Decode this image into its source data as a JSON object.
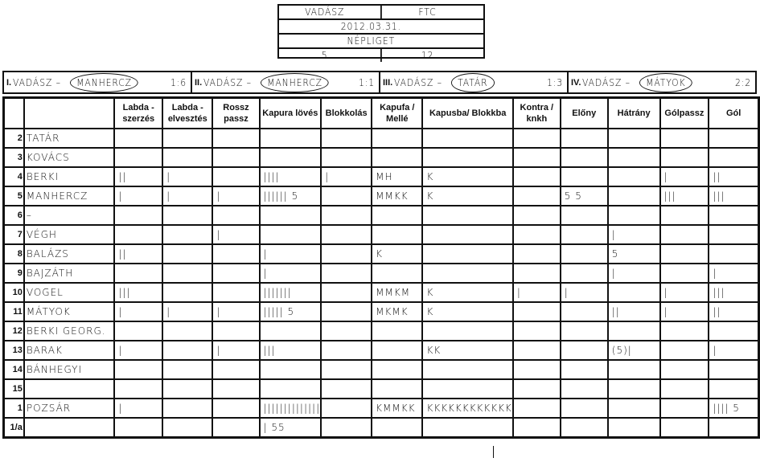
{
  "match": {
    "home": "VADÁSZ",
    "away": "FTC",
    "date": "2012.03.31.",
    "venue": "NÉPLIGET",
    "home_score": "5",
    "away_score": "12"
  },
  "periods": [
    {
      "label": "I.",
      "text": "VADÁSZ –",
      "goalie": "MANHERCZ",
      "score": "1:6"
    },
    {
      "label": "II.",
      "text": "VADÁSZ –",
      "goalie": "MANHERCZ",
      "score": "1:1"
    },
    {
      "label": "III.",
      "text": "VADÁSZ –",
      "goalie": "TATÁR",
      "score": "1:3"
    },
    {
      "label": "IV.",
      "text": "VADÁSZ –",
      "goalie": "MÁTYOK",
      "score": "2:2"
    }
  ],
  "columns": [
    "Labda - szerzés",
    "Labda - elvesztés",
    "Rossz passz",
    "Kapura lövés",
    "Blokkolás",
    "Kapufa / Mellé",
    "Kapusba/ Blokkba",
    "Kontra / knkh",
    "Előny",
    "Hátrány",
    "Gólpassz",
    "Gól"
  ],
  "rows": [
    {
      "num": "2",
      "name": "TATÁR",
      "cells": [
        "",
        "",
        "",
        "",
        "",
        "",
        "",
        "",
        "",
        "",
        "",
        ""
      ]
    },
    {
      "num": "3",
      "name": "KOVÁCS",
      "cells": [
        "",
        "",
        "",
        "",
        "",
        "",
        "",
        "",
        "",
        "",
        "",
        ""
      ]
    },
    {
      "num": "4",
      "name": "BERKI",
      "cells": [
        "||",
        "|",
        "",
        "||||",
        "|",
        "MH",
        "K",
        "",
        "",
        "",
        "|",
        "||"
      ]
    },
    {
      "num": "5",
      "name": "MANHERCZ",
      "cells": [
        "|",
        "|",
        "|",
        "||||||   5",
        "",
        "MMKK",
        "K",
        "",
        "5 5",
        "",
        "|||",
        "|||"
      ]
    },
    {
      "num": "6",
      "name": "–",
      "cells": [
        "",
        "",
        "",
        "",
        "",
        "",
        "",
        "",
        "",
        "",
        "",
        ""
      ]
    },
    {
      "num": "7",
      "name": "VÉGH",
      "cells": [
        "",
        "",
        "|",
        "",
        "",
        "",
        "",
        "",
        "",
        "|",
        "",
        ""
      ]
    },
    {
      "num": "8",
      "name": "BALÁZS",
      "cells": [
        "||",
        "",
        "",
        "|",
        "",
        "K",
        "",
        "",
        "",
        "5",
        "",
        ""
      ]
    },
    {
      "num": "9",
      "name": "BAJZÁTH",
      "cells": [
        "",
        "",
        "",
        "|",
        "",
        "",
        "",
        "",
        "",
        "|",
        "",
        "|"
      ]
    },
    {
      "num": "10",
      "name": "VOGEL",
      "cells": [
        "|||",
        "",
        "",
        "|||||||",
        "",
        "MMKM",
        "K",
        "|",
        "|",
        "",
        "|",
        "|||"
      ]
    },
    {
      "num": "11",
      "name": "MÁTYOK",
      "cells": [
        "|",
        "|",
        "|",
        "|||||   5",
        "",
        "MKMK",
        "K",
        "",
        "",
        "||",
        "|",
        "||"
      ]
    },
    {
      "num": "12",
      "name": "BERKI GEORG.",
      "cells": [
        "",
        "",
        "",
        "",
        "",
        "",
        "",
        "",
        "",
        "",
        "",
        ""
      ]
    },
    {
      "num": "13",
      "name": "BARAK",
      "cells": [
        "|",
        "",
        "|",
        "|||",
        "",
        "",
        "KK",
        "",
        "",
        "(5)|",
        "",
        "|"
      ]
    },
    {
      "num": "14",
      "name": "BÁNHEGYI",
      "cells": [
        "",
        "",
        "",
        "",
        "",
        "",
        "",
        "",
        "",
        "",
        "",
        ""
      ]
    },
    {
      "num": "15",
      "name": "",
      "cells": [
        "",
        "",
        "",
        "",
        "",
        "",
        "",
        "",
        "",
        "",
        "",
        ""
      ]
    },
    {
      "num": "1",
      "name": "POZSÁR",
      "cells": [
        "|",
        "",
        "",
        "||||||||||||||",
        "",
        "KMMKK",
        "KKKKKKKKKKKK",
        "",
        "",
        "",
        "",
        "||||      5"
      ]
    },
    {
      "num": "1/a",
      "name": "",
      "cells": [
        "",
        "",
        "",
        "|     55",
        "",
        "",
        "",
        "",
        "",
        "",
        "",
        ""
      ]
    }
  ]
}
